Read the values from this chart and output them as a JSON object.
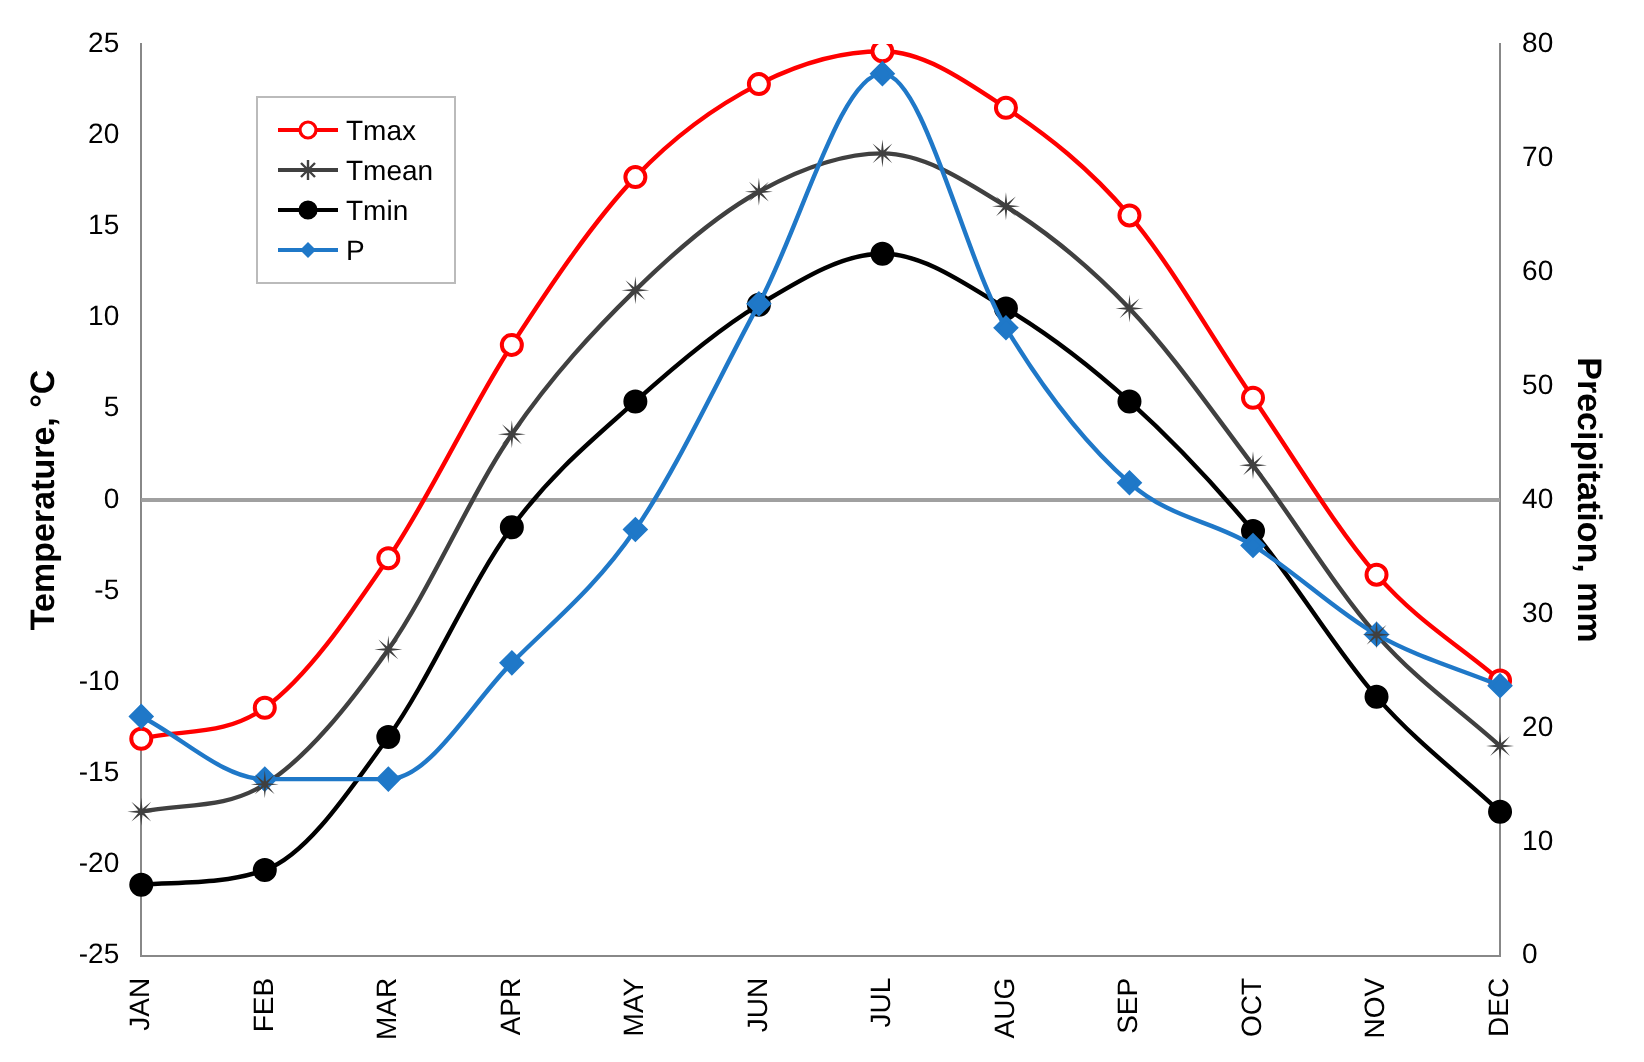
{
  "chart_data": {
    "type": "line",
    "ylabel": "Temperature, °C",
    "y2label": "Precipitation, mm",
    "categories": [
      "JAN",
      "FEB",
      "MAR",
      "APR",
      "MAY",
      "JUN",
      "JUL",
      "AUG",
      "SEP",
      "OCT",
      "NOV",
      "DEC"
    ],
    "series": [
      {
        "name": "Tmax",
        "color": "#ff0000",
        "marker": "circle",
        "values": [
          -13.1,
          -11.4,
          -3.2,
          8.5,
          17.7,
          22.8,
          24.6,
          21.5,
          15.6,
          5.6,
          -4.1,
          -9.9
        ]
      },
      {
        "name": "Tmean",
        "color": "#404040",
        "marker": "star",
        "values": [
          -17.1,
          -15.6,
          -8.2,
          3.6,
          11.5,
          16.9,
          19.0,
          16.1,
          10.5,
          1.9,
          -7.4,
          -13.5
        ]
      },
      {
        "name": "Tmin",
        "color": "#000000",
        "marker": "circle",
        "values": [
          -21.1,
          -20.3,
          -13.0,
          -1.5,
          5.4,
          10.7,
          13.5,
          10.5,
          5.4,
          -1.7,
          -10.8,
          -17.1
        ]
      },
      {
        "name": "P",
        "color": "#1f78c8",
        "marker": "diamond",
        "axis": "y2",
        "values": [
          21.0,
          15.5,
          15.5,
          25.7,
          37.4,
          57.2,
          77.4,
          55.1,
          41.5,
          36.0,
          28.2,
          23.7
        ]
      }
    ],
    "ylim": [
      -25,
      25
    ],
    "yticks": [
      -25,
      -20,
      -15,
      -10,
      -5,
      0,
      5,
      10,
      15,
      20,
      25
    ],
    "y2lim": [
      0,
      80
    ],
    "y2ticks": [
      0,
      10,
      20,
      30,
      40,
      50,
      60,
      70,
      80
    ],
    "ref_lines": [
      {
        "axis": "y",
        "value": 0,
        "color": "#a0a0a0"
      }
    ],
    "grid": false,
    "legend": "top left"
  }
}
